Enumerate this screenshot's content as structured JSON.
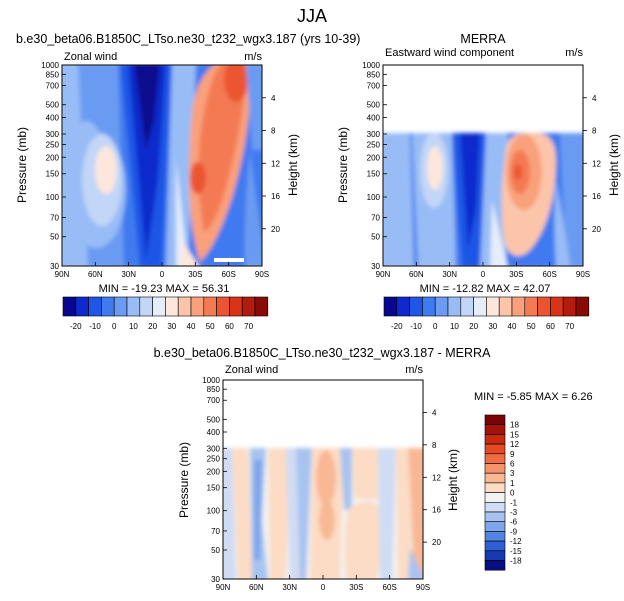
{
  "figure_title": "JJA",
  "pressure_ticks": [
    "30",
    "50",
    "70",
    "100",
    "150",
    "200",
    "250",
    "300",
    "400",
    "500",
    "700",
    "850",
    "1000"
  ],
  "lat_ticks": [
    "90N",
    "60N",
    "30N",
    "0",
    "30S",
    "60S",
    "90S"
  ],
  "height_ticks": [
    "4",
    "8",
    "12",
    "16",
    "20"
  ],
  "axis_labels": {
    "left": "Pressure (mb)",
    "right": "Height (km)"
  },
  "chart_data": [
    {
      "id": "model",
      "type": "heatmap",
      "title": "b.e30_beta06.B1850C_LTso.ne30_t232_wgx3.187 (yrs 10-39)",
      "left_label": "Zonal wind",
      "right_label": "m/s",
      "stats": "MIN = -19.23   MAX =  56.31",
      "x_range": [
        "90N",
        "90S"
      ],
      "y_range_mb": [
        1000,
        30
      ],
      "colorbar_labels": [
        "-20",
        "-10",
        "0",
        "10",
        "20",
        "30",
        "40",
        "50",
        "60",
        "70"
      ]
    },
    {
      "id": "merra",
      "type": "heatmap",
      "title": "MERRA",
      "left_label": "Eastward wind component",
      "right_label": "m/s",
      "stats": "MIN = -12.82   MAX =  42.07",
      "x_range": [
        "90N",
        "90S"
      ],
      "y_range_mb": [
        1000,
        100
      ],
      "colorbar_labels": [
        "-20",
        "-10",
        "0",
        "10",
        "20",
        "30",
        "40",
        "50",
        "60",
        "70"
      ]
    },
    {
      "id": "diff",
      "type": "heatmap",
      "title": "b.e30_beta06.B1850C_LTso.ne30_t232_wgx3.187 - MERRA",
      "left_label": "Zonal wind",
      "right_label": "m/s",
      "stats": "MIN =  -5.85   MAX =  6.26",
      "x_range": [
        "90N",
        "90S"
      ],
      "y_range_mb": [
        1000,
        100
      ],
      "colorbar_labels": [
        "18",
        "15",
        "12",
        "9",
        "6",
        "3",
        "1",
        "0",
        "-1",
        "-3",
        "-6",
        "-9",
        "-12",
        "-15",
        "-18"
      ]
    }
  ],
  "colors": {
    "main_scale": [
      "#08088f",
      "#0d2bcc",
      "#1f56e6",
      "#3f7af0",
      "#6b9bf2",
      "#98bcf5",
      "#c2d6f8",
      "#e5edfa",
      "#fde7dc",
      "#fcc5aa",
      "#f9a07c",
      "#f47a53",
      "#ec5431",
      "#d83417",
      "#b31b0c",
      "#8a0b05"
    ],
    "diff_scale": [
      "#7a0403",
      "#a51207",
      "#c92a12",
      "#e44a24",
      "#f06d44",
      "#f5936a",
      "#f9b894",
      "#fcdcc4",
      "#f2f2f2",
      "#cfdcf4",
      "#a8c3f0",
      "#7ea4ea",
      "#5483e0",
      "#2e60d2",
      "#1538b3",
      "#060f82"
    ]
  }
}
